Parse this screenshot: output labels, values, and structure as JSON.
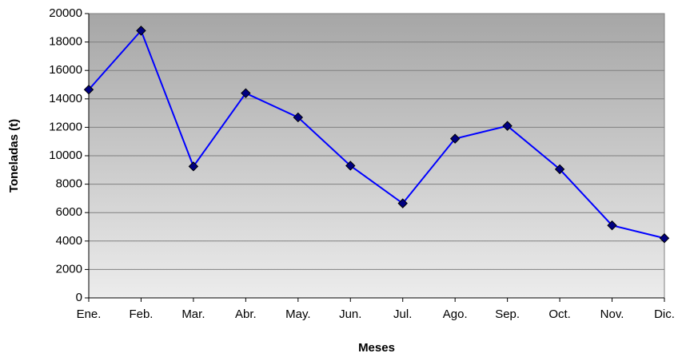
{
  "chart_data": {
    "type": "line",
    "x_label": "Meses",
    "y_label": "Toneladas (t)",
    "categories": [
      "Ene.",
      "Feb.",
      "Mar.",
      "Abr.",
      "May.",
      "Jun.",
      "Jul.",
      "Ago.",
      "Sep.",
      "Oct.",
      "Nov.",
      "Dic."
    ],
    "values": [
      14650,
      18800,
      9250,
      14400,
      12700,
      9300,
      6650,
      11200,
      12100,
      9050,
      5100,
      4200
    ],
    "color": "#0000ff",
    "marker_color": "#000080",
    "ylim": [
      0,
      20000
    ],
    "yticks": [
      0,
      2000,
      4000,
      6000,
      8000,
      10000,
      12000,
      14000,
      16000,
      18000,
      20000
    ],
    "grid": true
  }
}
